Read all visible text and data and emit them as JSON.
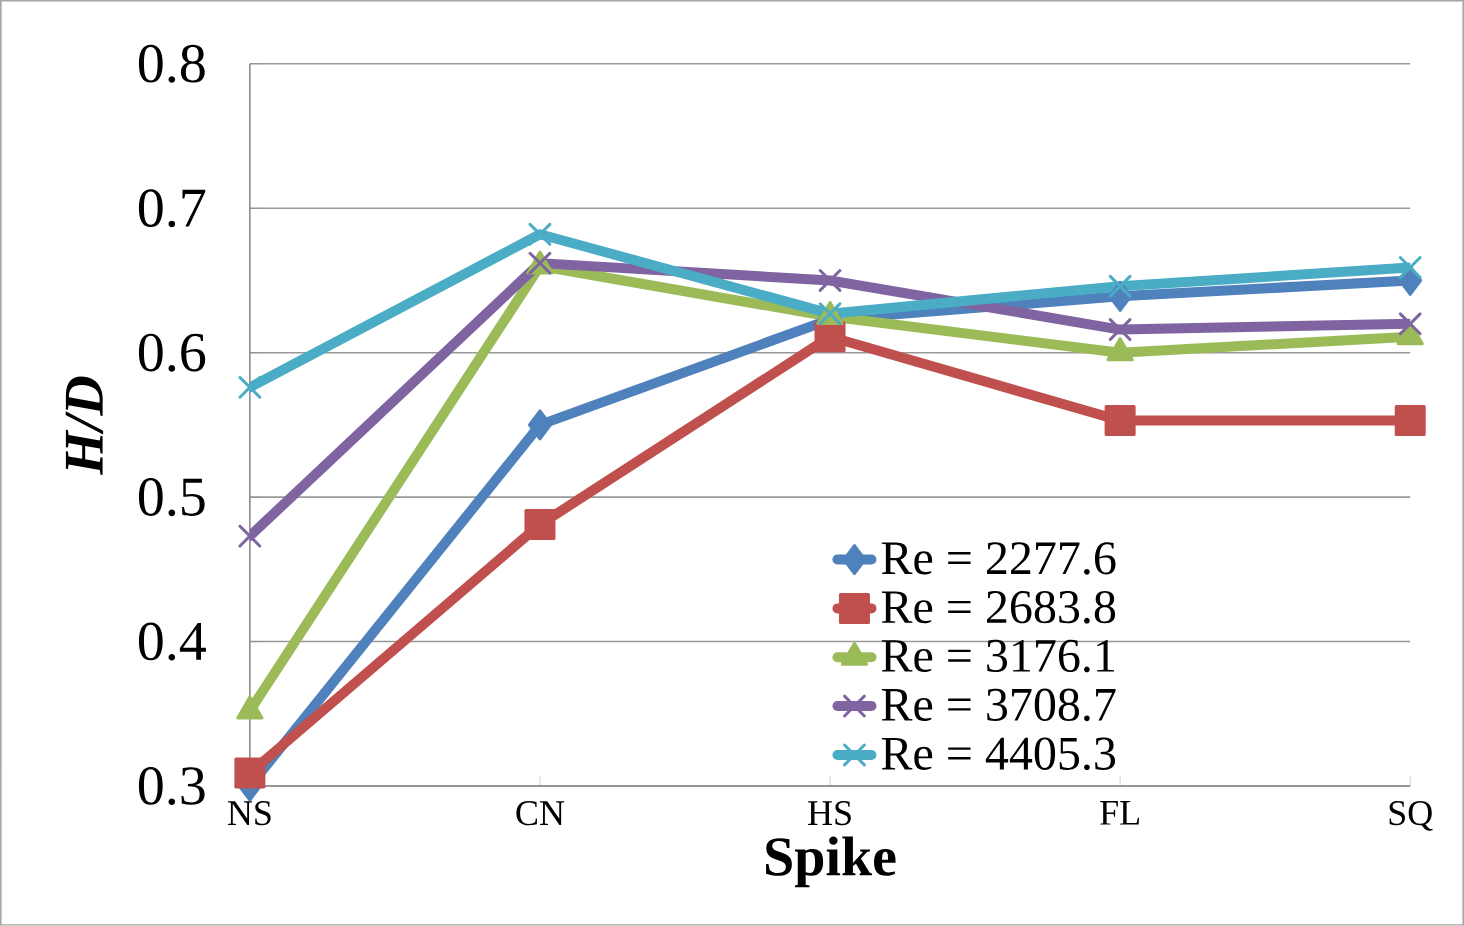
{
  "chart_data": {
    "type": "line",
    "xlabel": "Spike",
    "ylabel": "*H/D*",
    "categories": [
      "NS",
      "CN",
      "HS",
      "FL",
      "SQ"
    ],
    "series": [
      {
        "name": "Re = 2277.6",
        "color": "#4f81bd",
        "marker": "diamond",
        "values": [
          0.3,
          0.55,
          0.623,
          0.639,
          0.65
        ]
      },
      {
        "name": "Re = 2683.8",
        "color": "#c0504d",
        "marker": "square",
        "values": [
          0.309,
          0.481,
          0.611,
          0.553,
          0.553
        ]
      },
      {
        "name": "Re = 3176.1",
        "color": "#9bbb59",
        "marker": "triangle",
        "values": [
          0.352,
          0.66,
          0.625,
          0.6,
          0.611
        ]
      },
      {
        "name": "Re = 3708.7",
        "color": "#8064a2",
        "marker": "cross",
        "values": [
          0.473,
          0.662,
          0.65,
          0.616,
          0.62
        ]
      },
      {
        "name": "Re = 4405.3",
        "color": "#4bacc6",
        "marker": "cross",
        "values": [
          0.576,
          0.682,
          0.627,
          0.646,
          0.659
        ]
      }
    ],
    "ylim": [
      0.3,
      0.8
    ],
    "yticks": [
      0.3,
      0.4,
      0.5,
      0.6,
      0.7,
      0.8
    ],
    "grid": "y",
    "legend": "bottom right",
    "line_style": "solid"
  }
}
